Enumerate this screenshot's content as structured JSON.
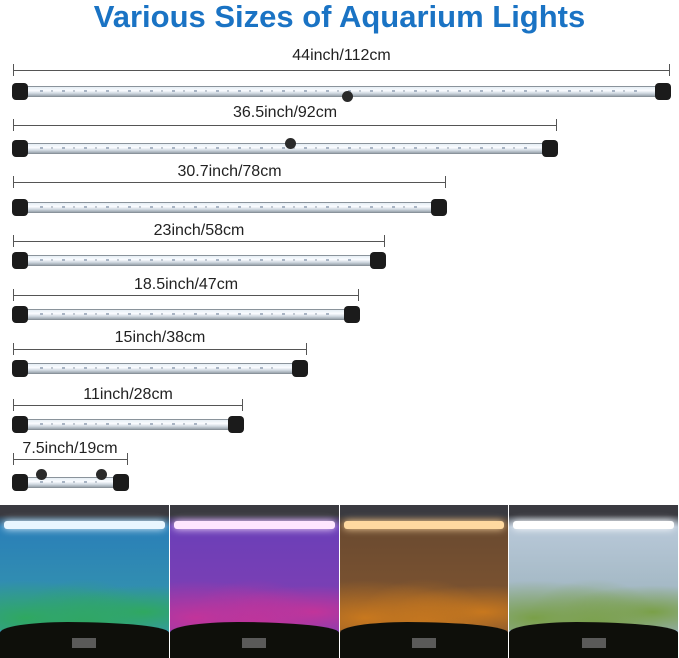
{
  "title": "Various Sizes of Aquarium Lights",
  "sizes": [
    {
      "label": "44inch/112cm"
    },
    {
      "label": "36.5inch/92cm"
    },
    {
      "label": "30.7inch/78cm"
    },
    {
      "label": "23inch/58cm"
    },
    {
      "label": "18.5inch/47cm"
    },
    {
      "label": "15inch/38cm"
    },
    {
      "label": "11inch/28cm"
    },
    {
      "label": "7.5inch/19cm"
    }
  ],
  "photos": [
    {
      "name": "blue",
      "light": "#e8f6ff",
      "water_top": "#2a7fb8",
      "water_bottom": "#3aa0a8",
      "plants": "#2fa860"
    },
    {
      "name": "purple",
      "light": "#ffe6ff",
      "water_top": "#6b3fb8",
      "water_bottom": "#8a3fb0",
      "plants": "#c2349a"
    },
    {
      "name": "orange",
      "light": "#ffd9a0",
      "water_top": "#6a4a30",
      "water_bottom": "#8a5a30",
      "plants": "#c8781e"
    },
    {
      "name": "white",
      "light": "#ffffff",
      "water_top": "#b8c8d8",
      "water_bottom": "#8ea8b0",
      "plants": "#7aa048"
    }
  ]
}
